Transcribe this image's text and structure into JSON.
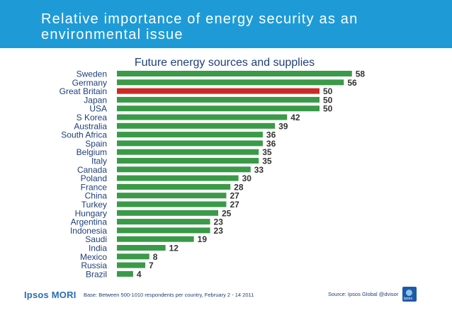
{
  "header": {
    "title_line1": "Relative importance of energy security as an",
    "title_line2": "environmental issue"
  },
  "chart_data": {
    "type": "bar",
    "orientation": "horizontal",
    "title": "Future energy sources and supplies",
    "categories": [
      "Sweden",
      "Germany",
      "Great Britain",
      "Japan",
      "USA",
      "S Korea",
      "Australia",
      "South Africa",
      "Spain",
      "Belgium",
      "Italy",
      "Canada",
      "Poland",
      "France",
      "China",
      "Turkey",
      "Hungary",
      "Argentina",
      "Indonesia",
      "Saudi",
      "India",
      "Mexico",
      "Russia",
      "Brazil"
    ],
    "values": [
      58,
      56,
      50,
      50,
      50,
      42,
      39,
      36,
      36,
      35,
      35,
      33,
      30,
      28,
      27,
      27,
      25,
      23,
      23,
      19,
      12,
      8,
      7,
      4
    ],
    "highlight": "Great Britain",
    "colors": {
      "bar": "#3a9a48",
      "highlight": "#cc2a26",
      "label": "#1f3f7a",
      "value": "#333333"
    },
    "xlim": [
      0,
      60
    ]
  },
  "footer": {
    "logo": "Ipsos MORI",
    "base": "Base: Between 500-1010 respondents per country, February 2 - 14 2011",
    "source": "Source: Ipsos Global @dvisor",
    "badge": "Ipsos"
  }
}
